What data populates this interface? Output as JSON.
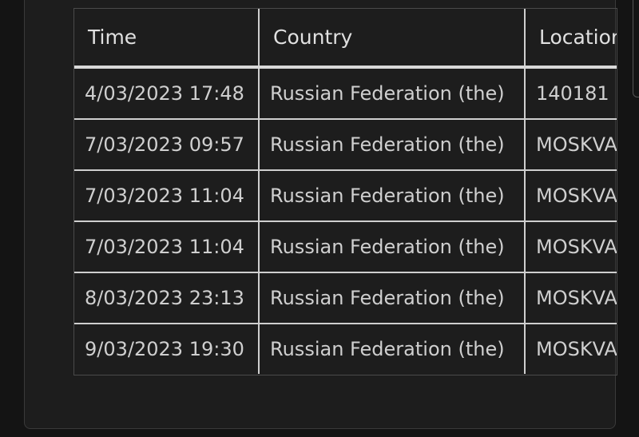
{
  "table": {
    "columns": [
      "Time",
      "Country",
      "Location"
    ],
    "rows": [
      [
        "4/03/2023 17:48",
        "Russian Federation (the)",
        "140181"
      ],
      [
        "7/03/2023 09:57",
        "Russian Federation (the)",
        "MOSKVA"
      ],
      [
        "7/03/2023 11:04",
        "Russian Federation (the)",
        "MOSKVA"
      ],
      [
        "7/03/2023 11:04",
        "Russian Federation (the)",
        "MOSKVA"
      ],
      [
        "8/03/2023 23:13",
        "Russian Federation (the)",
        "MOSKVA"
      ],
      [
        "9/03/2023 19:30",
        "Russian Federation (the)",
        "MOSKVA"
      ]
    ]
  }
}
